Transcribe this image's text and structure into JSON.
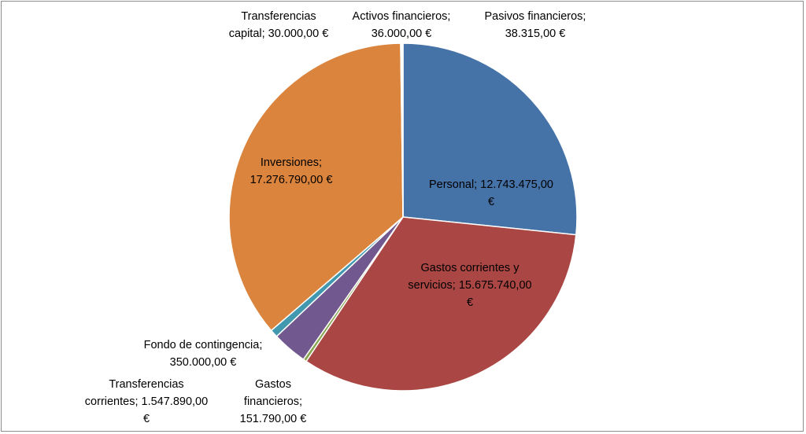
{
  "chart_data": {
    "type": "pie",
    "title": "",
    "slices": [
      {
        "name": "Personal",
        "value": 12743475.0,
        "text": "Personal; 12.743.475,00\n€",
        "color": "#4572A7"
      },
      {
        "name": "Gastos corrientes y servicios",
        "value": 15675740.0,
        "text": "Gastos corrientes y\nservicios; 15.675.740,00\n€",
        "color": "#AA4643"
      },
      {
        "name": "Gastos financieros",
        "value": 151790.0,
        "text": "Gastos\nfinancieros;\n151.790,00 €",
        "color": "#89A54E"
      },
      {
        "name": "Transferencias corrientes",
        "value": 1547890.0,
        "text": "Transferencias\ncorrientes; 1.547.890,00\n€",
        "color": "#71588F"
      },
      {
        "name": "Fondo de contingencia",
        "value": 350000.0,
        "text": "Fondo de contingencia;\n350.000,00 €",
        "color": "#4198AF"
      },
      {
        "name": "Inversiones",
        "value": 17276790.0,
        "text": "Inversiones;\n17.276.790,00 €",
        "color": "#DB843D"
      },
      {
        "name": "Transferencias capital",
        "value": 30000.0,
        "text": "Transferencias\ncapital; 30.000,00 €",
        "color": "#93A9CF"
      },
      {
        "name": "Activos financieros",
        "value": 36000.0,
        "text": "Activos financieros;\n36.000,00 €",
        "color": "#D19392"
      },
      {
        "name": "Pasivos financieros",
        "value": 38315.0,
        "text": "Pasivos financieros;\n38.315,00 €",
        "color": "#B9CD96"
      }
    ],
    "legend": "none"
  }
}
